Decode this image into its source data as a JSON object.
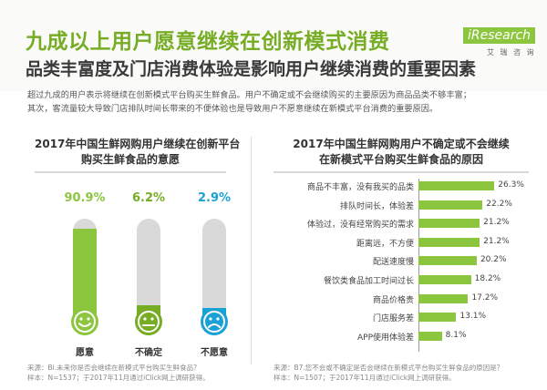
{
  "header": {
    "title": "九成以上用户愿意继续在创新模式消费",
    "subtitle": "品类丰富度及门店消费体验是影响用户继续消费的重要因素",
    "logo_brand": "iResearch",
    "logo_cn": "艾 瑞 咨 询"
  },
  "intro": {
    "line1": "超过九成的用户表示将继续在创新模式平台购买生鲜食品。用户不确定或不会继续购买的主要原因为商品品类不够丰富；",
    "line2": "其次，客流量较大导致门店排队时间长带来的不便体验也是导致用户不愿意继续在新模式平台消费的重要原因。"
  },
  "left_panel": {
    "title_line1": "2017年中国生鲜网购用户继续在创新平台",
    "title_line2": "购买生鲜食品的意愿",
    "source_line1": "来源：Bi.未来你是否会继续在新模式平台购买生鲜食品？",
    "source_line2": "样本：N=1537；于2017年11月通过iClick网上调研获得。"
  },
  "right_panel": {
    "title_line1": "2017年中国生鲜网购用户不确定或不会继续",
    "title_line2": "在新模式平台购买生鲜食品的原因",
    "source_line1": "来源：B7.您不会或不确定是否会继续在新模式平台购买生鲜食品的原因是？",
    "source_line2": "样本：N=1507；于2017年11月通过iClick网上调研获得。"
  },
  "chart_data": [
    {
      "type": "bar",
      "title": "2017年中国生鲜网购用户继续在创新平台购买生鲜食品的意愿",
      "categories": [
        "愿意",
        "不确定",
        "不愿意"
      ],
      "values": [
        90.9,
        6.2,
        2.9
      ],
      "labels": [
        "90.9%",
        "6.2%",
        "2.9%"
      ],
      "colors": [
        "#8cc63f",
        "#76ad25",
        "#1aa1d6"
      ],
      "ylim": [
        0,
        100
      ]
    },
    {
      "type": "bar",
      "title": "2017年中国生鲜网购用户不确定或不会继续在新模式平台购买生鲜食品的原因",
      "categories": [
        "商品不丰富，没有我买的品类",
        "排队时间长，体验差",
        "体验过，没有经常购买的需求",
        "距离远，不方便",
        "配送速度慢",
        "餐饮类食品加工时间过长",
        "商品价格贵",
        "门店服务差",
        "APP使用体验差"
      ],
      "values": [
        26.3,
        22.2,
        21.2,
        21.2,
        20.2,
        18.2,
        17.2,
        13.1,
        8.1
      ],
      "labels": [
        "26.3%",
        "22.2%",
        "21.2%",
        "21.2%",
        "20.2%",
        "18.2%",
        "17.2%",
        "13.1%",
        "8.1%"
      ],
      "color": "#8cc63f",
      "xlim": [
        0,
        30
      ]
    }
  ]
}
